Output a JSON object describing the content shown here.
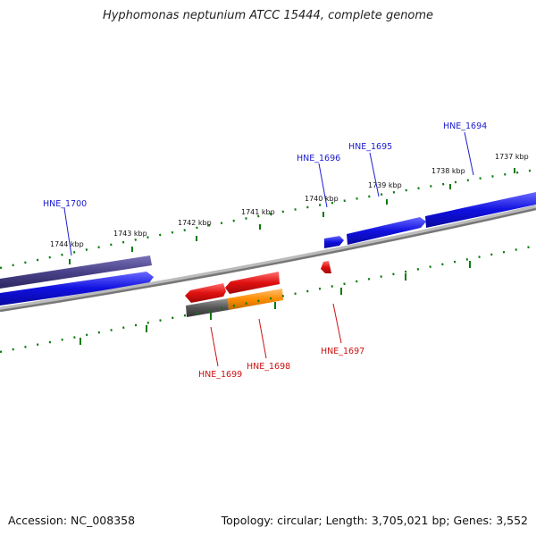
{
  "title": "Hyphomonas neptunium ATCC 15444, complete genome",
  "footer": {
    "accession": "Accession: NC_008358",
    "topology": "Topology: circular; Length: 3,705,021 bp; Genes: 3,552"
  },
  "kbp_labels": [
    "1744 kbp",
    "1743 kbp",
    "1742 kbp",
    "1741 kbp",
    "1740 kbp",
    "1739 kbp",
    "1738 kbp",
    "1737 kbp"
  ],
  "genes_forward": [
    "HNE_1700",
    "HNE_1696",
    "HNE_1695",
    "HNE_1694"
  ],
  "genes_reverse": [
    "HNE_1699",
    "HNE_1698",
    "HNE_1697"
  ],
  "colors": {
    "forward_gene": "#1010e0",
    "reverse_gene": "#e01010",
    "orange_feature": "#ff8c00",
    "gray_feature": "#555555",
    "purple_feature": "#4a4288",
    "backbone": "#888888",
    "tick": "#0a7a0a"
  }
}
